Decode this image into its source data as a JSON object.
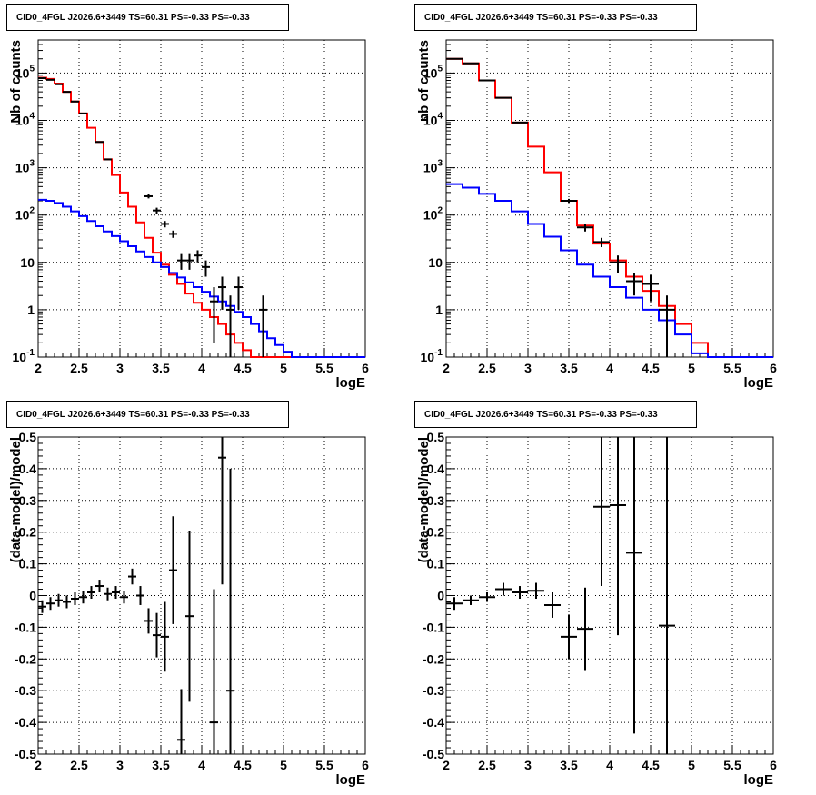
{
  "panels": [
    {
      "title": "CID0_4FGL J2026.6+3449 TS=60.31 PS=-0.33 PS=-0.33",
      "chart_data": {
        "type": "line",
        "subtype": "histogram",
        "xlabel": "logE",
        "ylabel": "Nb of counts",
        "xlim": [
          2,
          6
        ],
        "ylim": [
          0.1,
          500000
        ],
        "log_y": true,
        "grid": true,
        "x_ticks": [
          "2",
          "2.5",
          "3",
          "3.5",
          "4",
          "4.5",
          "5",
          "5.5",
          "6"
        ],
        "y_ticks": [
          "10^-1",
          "1",
          "10",
          "10^2",
          "10^3",
          "10^4",
          "10^5"
        ],
        "bin_edges": [
          2.0,
          2.1,
          2.2,
          2.3,
          2.4,
          2.5,
          2.6,
          2.7,
          2.8,
          2.9,
          3.0,
          3.1,
          3.2,
          3.3,
          3.4,
          3.5,
          3.6,
          3.7,
          3.8,
          3.9,
          4.0,
          4.1,
          4.2,
          4.3,
          4.4,
          4.5,
          4.6,
          4.7,
          4.8,
          4.9,
          5.0,
          5.1,
          5.2,
          5.3,
          5.4,
          5.5,
          5.6,
          5.7,
          5.8,
          5.9,
          6.0
        ],
        "series": [
          {
            "color": "#ff0000",
            "values": [
              80000,
              75000,
              60000,
              40000,
              25000,
              14000,
              7000,
              3500,
              1500,
              700,
              300,
              150,
              70,
              33,
              16,
              9,
              5.5,
              3.5,
              2.2,
              1.4,
              1.0,
              0.7,
              0.5,
              0.3,
              0.2,
              0.14,
              0.1,
              0.1,
              0.1,
              0.1,
              0.1,
              0.1,
              0.1,
              0.1,
              0.1,
              0.1,
              0.1,
              0.1,
              0.1,
              0.1
            ]
          },
          {
            "color": "#0000ff",
            "values": [
              210,
              200,
              180,
              150,
              120,
              95,
              75,
              58,
              45,
              36,
              28,
              22,
              17,
              13,
              10,
              8,
              6,
              4.8,
              3.8,
              3.0,
              2.4,
              1.9,
              1.5,
              1.2,
              0.9,
              0.7,
              0.5,
              0.35,
              0.25,
              0.18,
              0.13,
              0.1,
              0.1,
              0.1,
              0.1,
              0.1,
              0.1,
              0.1,
              0.1,
              0.1
            ]
          }
        ],
        "points": [
          {
            "x": 2.05,
            "y": 78000,
            "yerr": [
              0.5,
              0.5
            ]
          },
          {
            "x": 2.15,
            "y": 72000,
            "yerr": [
              0.5,
              0.5
            ]
          },
          {
            "x": 2.25,
            "y": 58000,
            "yerr": [
              0.5,
              0.5
            ]
          },
          {
            "x": 2.35,
            "y": 40000,
            "yerr": [
              0.5,
              0.5
            ]
          },
          {
            "x": 2.45,
            "y": 25000,
            "yerr": [
              0.5,
              0.5
            ]
          },
          {
            "x": 2.55,
            "y": 14000,
            "yerr": [
              0.5,
              0.5
            ]
          },
          {
            "x": 2.75,
            "y": 3500,
            "yerr": [
              0.5,
              0.5
            ]
          },
          {
            "x": 2.85,
            "y": 1500,
            "yerr": [
              0.5,
              0.5
            ]
          },
          {
            "x": 3.35,
            "y": 250,
            "yerr": [
              25,
              25
            ]
          },
          {
            "x": 3.45,
            "y": 125,
            "yerr": [
              18,
              18
            ]
          },
          {
            "x": 3.55,
            "y": 65,
            "yerr": [
              10,
              10
            ]
          },
          {
            "x": 3.65,
            "y": 40,
            "yerr": [
              7,
              7
            ]
          },
          {
            "x": 3.75,
            "y": 11,
            "yerr": [
              4,
              4
            ]
          },
          {
            "x": 3.85,
            "y": 11,
            "yerr": [
              4,
              4
            ]
          },
          {
            "x": 3.95,
            "y": 14,
            "yerr": [
              4,
              4
            ]
          },
          {
            "x": 4.05,
            "y": 8,
            "yerr": [
              3,
              3
            ]
          },
          {
            "x": 4.15,
            "y": 1.5,
            "yerr": [
              1.3,
              1.5
            ]
          },
          {
            "x": 4.25,
            "y": 3,
            "yerr": [
              2,
              2
            ]
          },
          {
            "x": 4.35,
            "y": 1,
            "yerr": [
              0.9,
              1
            ]
          },
          {
            "x": 4.45,
            "y": 3,
            "yerr": [
              2,
              2
            ]
          },
          {
            "x": 4.75,
            "y": 1,
            "yerr": [
              0.9,
              1
            ]
          }
        ]
      }
    },
    {
      "title": "CID0_4FGL J2026.6+3449 TS=60.31 PS=-0.33 PS=-0.33",
      "chart_data": {
        "type": "line",
        "subtype": "histogram",
        "xlabel": "logE",
        "ylabel": "nb of counts",
        "xlim": [
          2,
          6
        ],
        "ylim": [
          0.1,
          500000
        ],
        "log_y": true,
        "grid": true,
        "x_ticks": [
          "2",
          "2.5",
          "3",
          "3.5",
          "4",
          "4.5",
          "5",
          "5.5",
          "6"
        ],
        "y_ticks": [
          "10^-1",
          "1",
          "10",
          "10^2",
          "10^3",
          "10^4",
          "10^5"
        ],
        "bin_edges": [
          2.0,
          2.2,
          2.4,
          2.6,
          2.8,
          3.0,
          3.2,
          3.4,
          3.6,
          3.8,
          4.0,
          4.2,
          4.4,
          4.6,
          4.8,
          5.0,
          5.2,
          5.4,
          5.6,
          5.8,
          6.0
        ],
        "series": [
          {
            "color": "#ff0000",
            "values": [
              200000,
              160000,
              70000,
              30000,
              9000,
              2800,
              800,
              200,
              60,
              25,
              11,
              5,
              2.5,
              1.2,
              0.5,
              0.2,
              0.1,
              0.1,
              0.1,
              0.1
            ]
          },
          {
            "color": "#0000ff",
            "values": [
              450,
              380,
              280,
              200,
              120,
              65,
              35,
              18,
              9,
              5,
              3,
              1.8,
              1.0,
              0.6,
              0.3,
              0.12,
              0.1,
              0.1,
              0.1,
              0.1
            ]
          }
        ],
        "points": [
          {
            "x": 2.1,
            "y": 200000,
            "yerr": [
              0.5,
              0.5
            ]
          },
          {
            "x": 2.3,
            "y": 160000,
            "yerr": [
              0.5,
              0.5
            ]
          },
          {
            "x": 2.5,
            "y": 70000,
            "yerr": [
              0.5,
              0.5
            ]
          },
          {
            "x": 2.7,
            "y": 30000,
            "yerr": [
              0.5,
              0.5
            ]
          },
          {
            "x": 2.9,
            "y": 9000,
            "yerr": [
              0.5,
              0.5
            ]
          },
          {
            "x": 3.5,
            "y": 200,
            "yerr": [
              20,
              20
            ]
          },
          {
            "x": 3.7,
            "y": 55,
            "yerr": [
              10,
              10
            ]
          },
          {
            "x": 3.9,
            "y": 27,
            "yerr": [
              6,
              6
            ]
          },
          {
            "x": 4.1,
            "y": 10,
            "yerr": [
              4,
              4
            ]
          },
          {
            "x": 4.3,
            "y": 4,
            "yerr": [
              2,
              2
            ]
          },
          {
            "x": 4.5,
            "y": 3.5,
            "yerr": [
              2,
              2
            ]
          },
          {
            "x": 4.7,
            "y": 1,
            "yerr": [
              0.9,
              1
            ]
          }
        ]
      }
    },
    {
      "title": "CID0_4FGL J2026.6+3449 TS=60.31 PS=-0.33 PS=-0.33",
      "chart_data": {
        "type": "scatter",
        "xlabel": "logE",
        "ylabel": "(data-model)/model",
        "xlim": [
          2,
          6
        ],
        "ylim": [
          -0.5,
          0.5
        ],
        "grid": true,
        "x_ticks": [
          "2",
          "2.5",
          "3",
          "3.5",
          "4",
          "4.5",
          "5",
          "5.5",
          "6"
        ],
        "y_ticks": [
          "-0.5",
          "-0.4",
          "-0.3",
          "-0.2",
          "-0.1",
          "0",
          "0.1",
          "0.2",
          "0.3",
          "0.4",
          "0.5"
        ],
        "bin_halfwidth": 0.05,
        "points": [
          {
            "x": 2.05,
            "y": -0.035,
            "yerr": 0.02
          },
          {
            "x": 2.15,
            "y": -0.025,
            "yerr": 0.02
          },
          {
            "x": 2.25,
            "y": -0.015,
            "yerr": 0.02
          },
          {
            "x": 2.35,
            "y": -0.02,
            "yerr": 0.02
          },
          {
            "x": 2.45,
            "y": -0.01,
            "yerr": 0.02
          },
          {
            "x": 2.55,
            "y": -0.005,
            "yerr": 0.02
          },
          {
            "x": 2.65,
            "y": 0.01,
            "yerr": 0.02
          },
          {
            "x": 2.75,
            "y": 0.03,
            "yerr": 0.02
          },
          {
            "x": 2.85,
            "y": 0.005,
            "yerr": 0.02
          },
          {
            "x": 2.95,
            "y": 0.01,
            "yerr": 0.02
          },
          {
            "x": 3.05,
            "y": -0.005,
            "yerr": 0.02
          },
          {
            "x": 3.15,
            "y": 0.06,
            "yerr": 0.025
          },
          {
            "x": 3.25,
            "y": 0.0,
            "yerr": 0.03
          },
          {
            "x": 3.35,
            "y": -0.08,
            "yerr": 0.04
          },
          {
            "x": 3.45,
            "y": -0.125,
            "yerr": 0.07
          },
          {
            "x": 3.55,
            "y": -0.13,
            "yerr": 0.11
          },
          {
            "x": 3.65,
            "y": 0.08,
            "yerr": 0.17
          },
          {
            "x": 3.75,
            "y": -0.455,
            "yerr": 0.16
          },
          {
            "x": 3.85,
            "y": -0.065,
            "yerr": 0.27
          },
          {
            "x": 4.15,
            "y": -0.4,
            "yerr": 0.42
          },
          {
            "x": 4.25,
            "y": 0.435,
            "yerr": 0.4
          },
          {
            "x": 4.35,
            "y": -0.3,
            "yerr": 0.7
          }
        ]
      }
    },
    {
      "title": "CID0_4FGL J2026.6+3449 TS=60.31 PS=-0.33 PS=-0.33",
      "chart_data": {
        "type": "scatter",
        "xlabel": "logE",
        "ylabel": "(data-model)/model",
        "xlim": [
          2,
          6
        ],
        "ylim": [
          -0.5,
          0.5
        ],
        "grid": true,
        "x_ticks": [
          "2",
          "2.5",
          "3",
          "3.5",
          "4",
          "4.5",
          "5",
          "5.5",
          "6"
        ],
        "y_ticks": [
          "-0.5",
          "-0.4",
          "-0.3",
          "-0.2",
          "-0.1",
          "0",
          "0.1",
          "0.2",
          "0.3",
          "0.4",
          "0.5"
        ],
        "bin_halfwidth": 0.1,
        "points": [
          {
            "x": 2.1,
            "y": -0.025,
            "yerr": 0.02
          },
          {
            "x": 2.3,
            "y": -0.015,
            "yerr": 0.015
          },
          {
            "x": 2.5,
            "y": -0.005,
            "yerr": 0.015
          },
          {
            "x": 2.7,
            "y": 0.02,
            "yerr": 0.02
          },
          {
            "x": 2.9,
            "y": 0.01,
            "yerr": 0.02
          },
          {
            "x": 3.1,
            "y": 0.015,
            "yerr": 0.025
          },
          {
            "x": 3.3,
            "y": -0.03,
            "yerr": 0.04
          },
          {
            "x": 3.5,
            "y": -0.13,
            "yerr": 0.07
          },
          {
            "x": 3.7,
            "y": -0.105,
            "yerr": 0.13
          },
          {
            "x": 3.9,
            "y": 0.28,
            "yerr": 0.25
          },
          {
            "x": 4.1,
            "y": 0.285,
            "yerr": 0.41
          },
          {
            "x": 4.3,
            "y": 0.135,
            "yerr": 0.57
          },
          {
            "x": 4.7,
            "y": -0.095,
            "yerr": 0.9
          }
        ]
      }
    }
  ]
}
